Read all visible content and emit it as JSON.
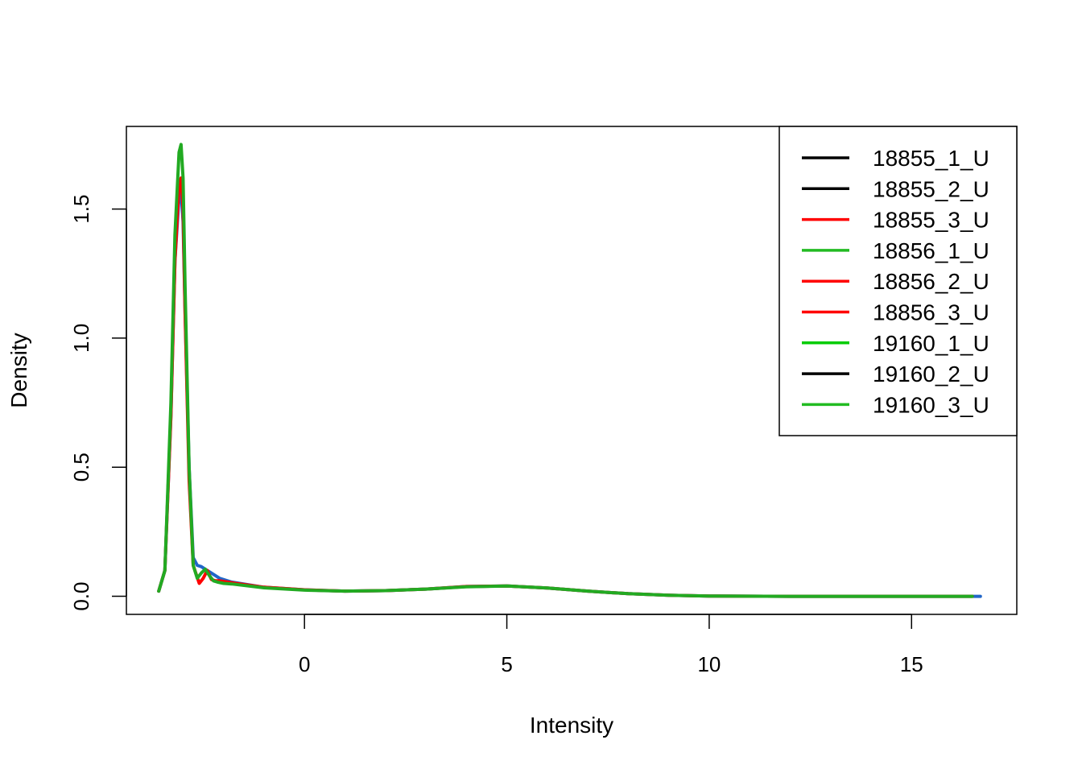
{
  "chart_data": {
    "type": "line",
    "title": "",
    "xlabel": "Intensity",
    "ylabel": "Density",
    "xlim": [
      -4.4,
      17.6
    ],
    "ylim": [
      -0.07,
      1.82
    ],
    "xticks": [
      0,
      5,
      10,
      15
    ],
    "xtick_labels": [
      "0",
      "5",
      "10",
      "15"
    ],
    "yticks": [
      0.0,
      0.5,
      1.0,
      1.5
    ],
    "ytick_labels": [
      "0.0",
      "0.5",
      "1.0",
      "1.5"
    ],
    "grid": false,
    "legend_position": "top-right",
    "legend": [
      {
        "label": "18855_1_U",
        "color": "#000000"
      },
      {
        "label": "18855_2_U",
        "color": "#000000"
      },
      {
        "label": "18855_3_U",
        "color": "#ff0000"
      },
      {
        "label": "18856_1_U",
        "color": "#22bb22"
      },
      {
        "label": "18856_2_U",
        "color": "#ff0000"
      },
      {
        "label": "18856_3_U",
        "color": "#ff0000"
      },
      {
        "label": "19160_1_U",
        "color": "#00cc00"
      },
      {
        "label": "19160_2_U",
        "color": "#000000"
      },
      {
        "label": "19160_3_U",
        "color": "#22bb22"
      }
    ],
    "series": [
      {
        "color": "#2166c8",
        "x": [
          -3.6,
          -3.45,
          -3.3,
          -3.2,
          -3.1,
          -3.05,
          -3.0,
          -2.95,
          -2.85,
          -2.75,
          -2.65,
          -2.55,
          -2.45,
          -2.3,
          -2.1,
          -1.8,
          -1.0,
          0,
          1,
          2,
          3,
          4,
          5,
          6,
          7,
          8,
          9,
          10,
          12,
          14,
          16,
          16.7
        ],
        "y": [
          0.02,
          0.1,
          0.7,
          1.3,
          1.55,
          1.57,
          1.45,
          1.1,
          0.5,
          0.15,
          0.12,
          0.115,
          0.105,
          0.09,
          0.07,
          0.055,
          0.035,
          0.025,
          0.02,
          0.022,
          0.028,
          0.038,
          0.04,
          0.032,
          0.02,
          0.01,
          0.004,
          0.001,
          0,
          0,
          0,
          0
        ]
      },
      {
        "color": "#ff0000",
        "x": [
          -3.6,
          -3.45,
          -3.3,
          -3.2,
          -3.1,
          -3.05,
          -3.0,
          -2.95,
          -2.85,
          -2.75,
          -2.6,
          -2.5,
          -2.4,
          -2.3,
          -2.2,
          -2.1,
          -1.9,
          -1.7,
          -1.0,
          0,
          1,
          2,
          3,
          4,
          5,
          6,
          7,
          8,
          9,
          10,
          12,
          14,
          16.5
        ],
        "y": [
          0.02,
          0.1,
          0.7,
          1.3,
          1.6,
          1.62,
          1.5,
          1.1,
          0.45,
          0.12,
          0.05,
          0.07,
          0.1,
          0.065,
          0.06,
          0.06,
          0.055,
          0.05,
          0.035,
          0.025,
          0.02,
          0.022,
          0.028,
          0.038,
          0.04,
          0.032,
          0.02,
          0.01,
          0.004,
          0.001,
          0,
          0,
          0
        ]
      },
      {
        "color": "#22aa22",
        "x": [
          -3.6,
          -3.45,
          -3.3,
          -3.2,
          -3.1,
          -3.05,
          -3.0,
          -2.95,
          -2.85,
          -2.75,
          -2.65,
          -2.55,
          -2.45,
          -2.35,
          -2.25,
          -2.15,
          -2.0,
          -1.8,
          -1.0,
          0,
          1,
          2,
          3,
          4,
          5,
          6,
          7,
          8,
          9,
          10,
          12,
          14,
          16.5
        ],
        "y": [
          0.02,
          0.1,
          0.75,
          1.4,
          1.72,
          1.75,
          1.62,
          1.2,
          0.5,
          0.12,
          0.07,
          0.09,
          0.105,
          0.08,
          0.06,
          0.055,
          0.05,
          0.048,
          0.033,
          0.024,
          0.02,
          0.022,
          0.028,
          0.037,
          0.04,
          0.032,
          0.02,
          0.01,
          0.004,
          0.001,
          0,
          0,
          0
        ]
      }
    ]
  }
}
